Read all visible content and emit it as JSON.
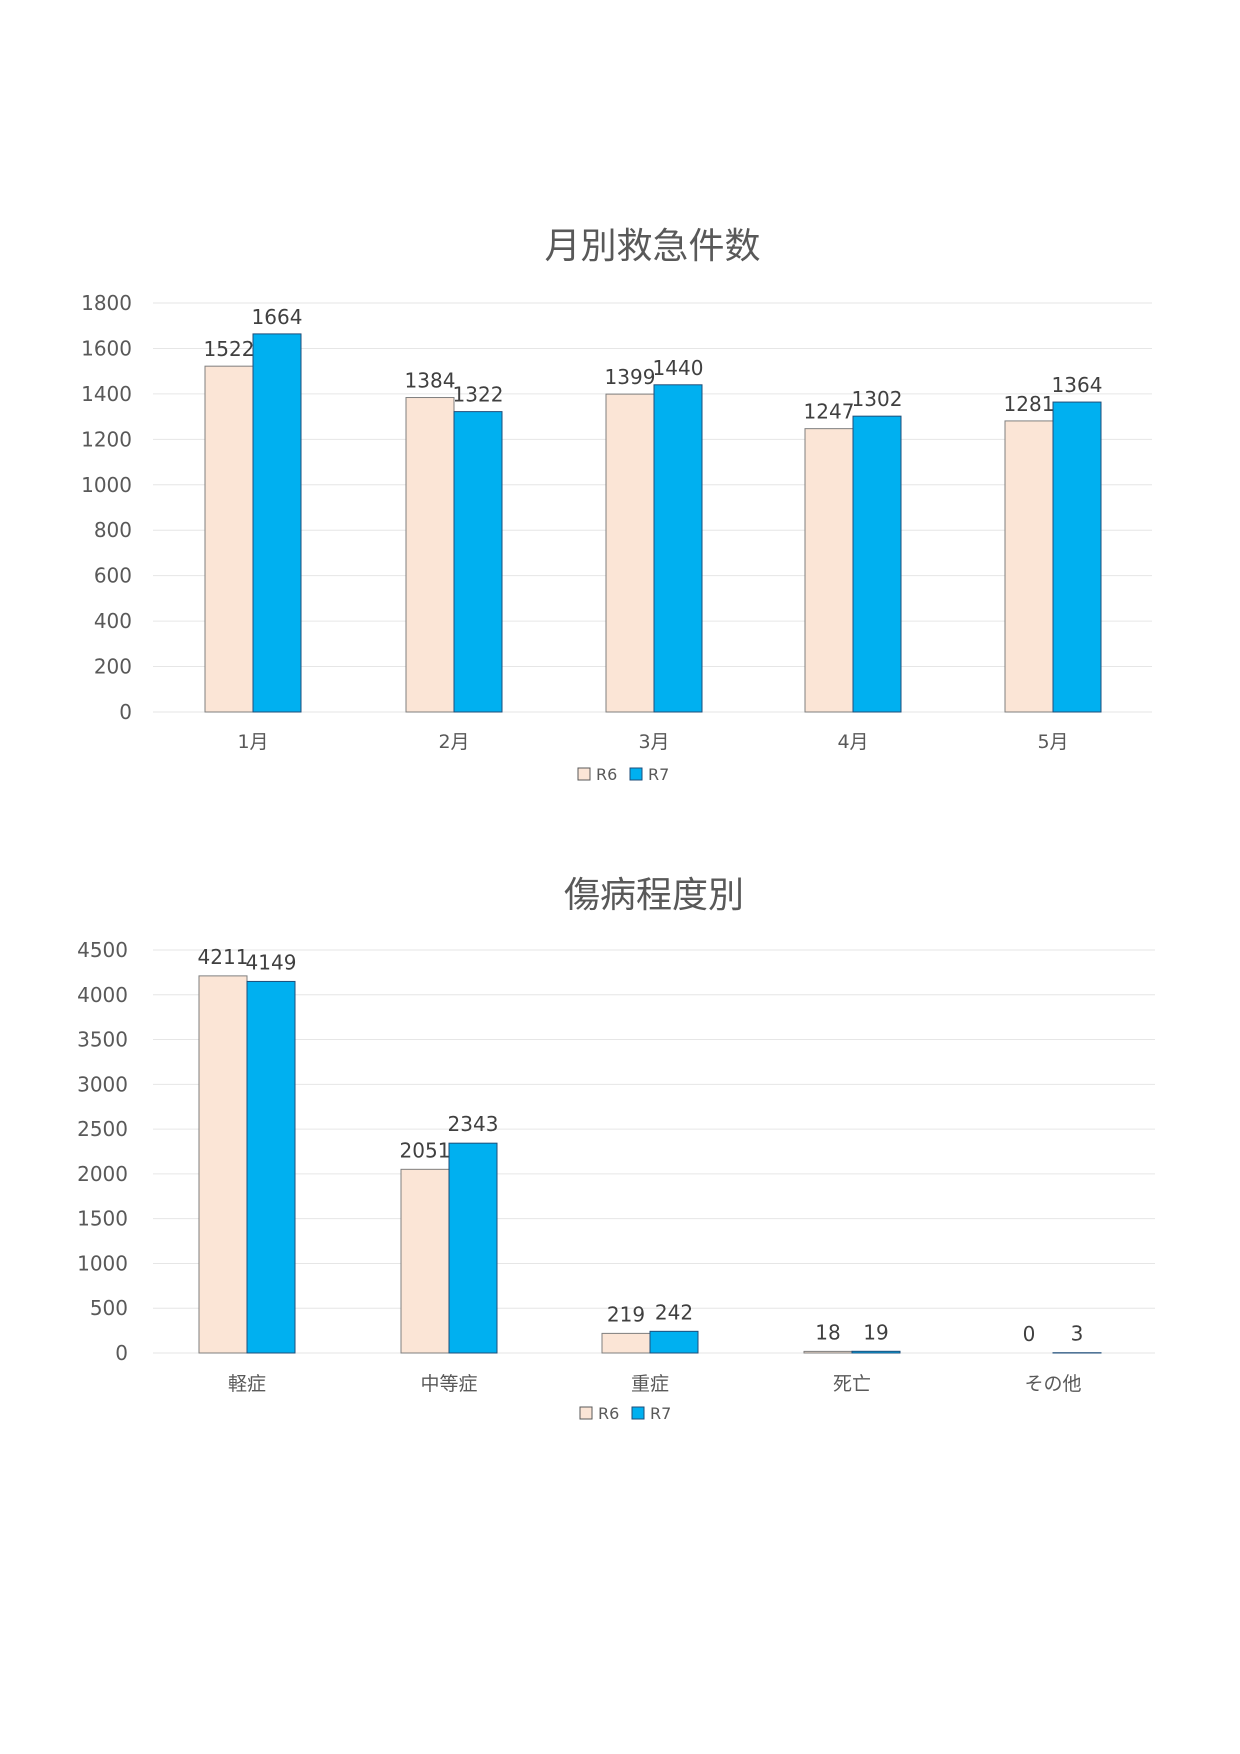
{
  "colors": {
    "r6": "#FBE5D6",
    "r7": "#00B0F0",
    "grid": "#E6E6E6",
    "bar_stroke": "#000000"
  },
  "chart_data": [
    {
      "type": "bar",
      "title": "月別救急件数",
      "categories": [
        "1月",
        "2月",
        "3月",
        "4月",
        "5月"
      ],
      "series": [
        {
          "name": "R6",
          "values": [
            1522,
            1384,
            1399,
            1247,
            1281
          ]
        },
        {
          "name": "R7",
          "values": [
            1664,
            1322,
            1440,
            1302,
            1364
          ]
        }
      ],
      "ylim": [
        0,
        1800
      ],
      "yticks": [
        0,
        200,
        400,
        600,
        800,
        1000,
        1200,
        1400,
        1600,
        1800
      ],
      "grid": true,
      "legend": "bottom"
    },
    {
      "type": "bar",
      "title": "傷病程度別",
      "categories": [
        "軽症",
        "中等症",
        "重症",
        "死亡",
        "その他"
      ],
      "series": [
        {
          "name": "R6",
          "values": [
            4211,
            2051,
            219,
            18,
            0
          ]
        },
        {
          "name": "R7",
          "values": [
            4149,
            2343,
            242,
            19,
            3
          ]
        }
      ],
      "ylim": [
        0,
        4500
      ],
      "yticks": [
        0,
        500,
        1000,
        1500,
        2000,
        2500,
        3000,
        3500,
        4000,
        4500
      ],
      "grid": true,
      "legend": "bottom"
    }
  ]
}
